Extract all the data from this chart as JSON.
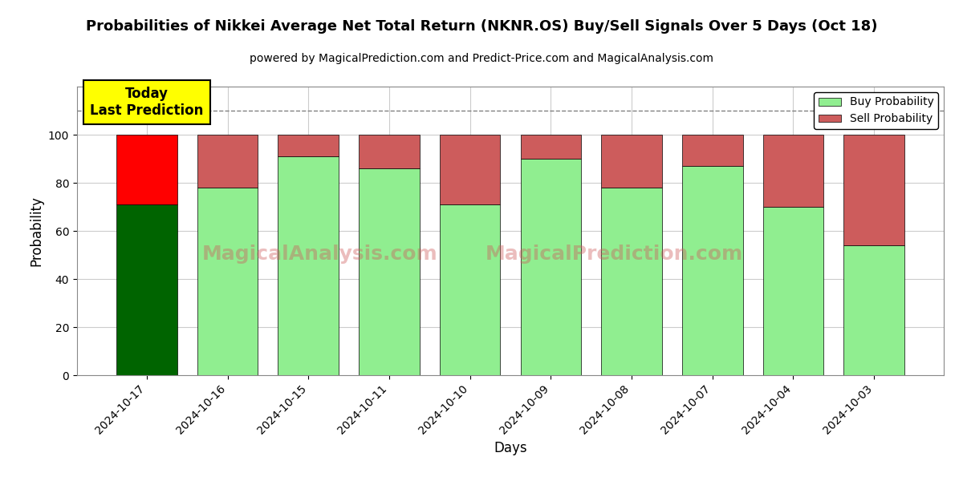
{
  "title": "Probabilities of Nikkei Average Net Total Return (NKNR.OS) Buy/Sell Signals Over 5 Days (Oct 18)",
  "subtitle": "powered by MagicalPrediction.com and Predict-Price.com and MagicalAnalysis.com",
  "xlabel": "Days",
  "ylabel": "Probability",
  "categories": [
    "2024-10-17",
    "2024-10-16",
    "2024-10-15",
    "2024-10-11",
    "2024-10-10",
    "2024-10-09",
    "2024-10-08",
    "2024-10-07",
    "2024-10-04",
    "2024-10-03"
  ],
  "buy_values": [
    71,
    78,
    91,
    86,
    71,
    90,
    78,
    87,
    70,
    54
  ],
  "sell_values": [
    29,
    22,
    9,
    14,
    29,
    10,
    22,
    13,
    30,
    46
  ],
  "today_buy_color": "#006400",
  "today_sell_color": "#ff0000",
  "buy_color": "#90EE90",
  "sell_color": "#CD5C5C",
  "today_label_bg": "#ffff00",
  "today_label_text": "Today\nLast Prediction",
  "dashed_line_y": 110,
  "ylim": [
    0,
    120
  ],
  "yticks": [
    0,
    20,
    40,
    60,
    80,
    100
  ],
  "legend_buy": "Buy Probability",
  "legend_sell": "Sell Probability",
  "watermark_left": "MagicalAnalysis.com",
  "watermark_right": "MagicalPrediction.com",
  "background_color": "#ffffff",
  "grid_color": "#cccccc"
}
